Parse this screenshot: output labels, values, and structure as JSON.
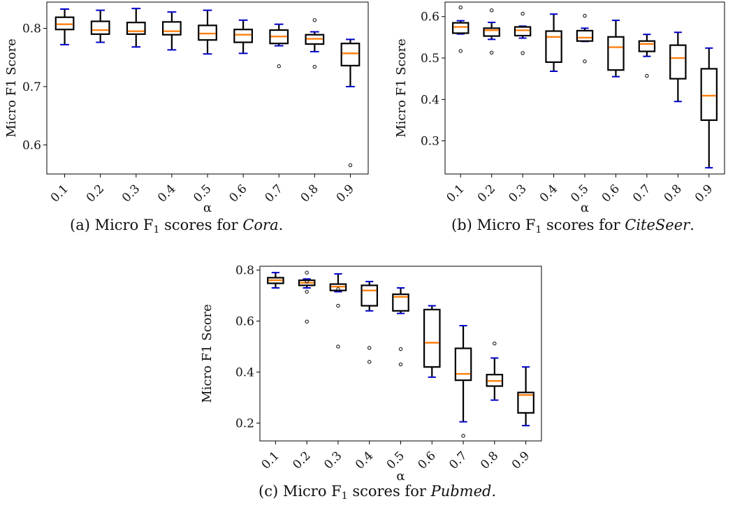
{
  "chart_data": [
    {
      "type": "boxplot",
      "ylabel": "Micro F1 Score",
      "xlabel": "α",
      "categories": [
        "0.1",
        "0.2",
        "0.3",
        "0.4",
        "0.5",
        "0.6",
        "0.7",
        "0.8",
        "0.9"
      ],
      "ylim": [
        0.55,
        0.845
      ],
      "yticks": [
        0.6,
        0.7,
        0.8
      ],
      "ytick_labels": [
        "0.6",
        "0.7",
        "0.8"
      ],
      "boxes": [
        {
          "whislo": 0.772,
          "q1": 0.798,
          "med": 0.807,
          "q3": 0.819,
          "whishi": 0.833,
          "fliers": []
        },
        {
          "whislo": 0.776,
          "q1": 0.79,
          "med": 0.797,
          "q3": 0.812,
          "whishi": 0.831,
          "fliers": []
        },
        {
          "whislo": 0.768,
          "q1": 0.79,
          "med": 0.795,
          "q3": 0.81,
          "whishi": 0.834,
          "fliers": []
        },
        {
          "whislo": 0.763,
          "q1": 0.789,
          "med": 0.795,
          "q3": 0.811,
          "whishi": 0.828,
          "fliers": []
        },
        {
          "whislo": 0.756,
          "q1": 0.78,
          "med": 0.791,
          "q3": 0.805,
          "whishi": 0.831,
          "fliers": []
        },
        {
          "whislo": 0.757,
          "q1": 0.776,
          "med": 0.789,
          "q3": 0.798,
          "whishi": 0.814,
          "fliers": []
        },
        {
          "whislo": 0.77,
          "q1": 0.774,
          "med": 0.786,
          "q3": 0.797,
          "whishi": 0.807,
          "fliers": [
            0.735
          ]
        },
        {
          "whislo": 0.76,
          "q1": 0.773,
          "med": 0.782,
          "q3": 0.789,
          "whishi": 0.794,
          "fliers": [
            0.814,
            0.734
          ]
        },
        {
          "whislo": 0.7,
          "q1": 0.736,
          "med": 0.757,
          "q3": 0.774,
          "whishi": 0.781,
          "fliers": [
            0.565
          ]
        }
      ]
    },
    {
      "type": "boxplot",
      "ylabel": "Micro F1 Score",
      "xlabel": "α",
      "categories": [
        "0.1",
        "0.2",
        "0.3",
        "0.4",
        "0.5",
        "0.6",
        "0.7",
        "0.8",
        "0.9"
      ],
      "ylim": [
        0.22,
        0.635
      ],
      "yticks": [
        0.3,
        0.4,
        0.5,
        0.6
      ],
      "ytick_labels": [
        "0.3",
        "0.4",
        "0.5",
        "0.6"
      ],
      "boxes": [
        {
          "whislo": 0.558,
          "q1": 0.56,
          "med": 0.575,
          "q3": 0.585,
          "whishi": 0.59,
          "fliers": [
            0.622,
            0.517
          ]
        },
        {
          "whislo": 0.545,
          "q1": 0.553,
          "med": 0.567,
          "q3": 0.572,
          "whishi": 0.586,
          "fliers": [
            0.615,
            0.513
          ]
        },
        {
          "whislo": 0.548,
          "q1": 0.554,
          "med": 0.567,
          "q3": 0.575,
          "whishi": 0.577,
          "fliers": [
            0.607,
            0.512
          ]
        },
        {
          "whislo": 0.468,
          "q1": 0.49,
          "med": 0.551,
          "q3": 0.565,
          "whishi": 0.606,
          "fliers": []
        },
        {
          "whislo": 0.54,
          "q1": 0.541,
          "med": 0.549,
          "q3": 0.566,
          "whishi": 0.572,
          "fliers": [
            0.602,
            0.492
          ]
        },
        {
          "whislo": 0.455,
          "q1": 0.471,
          "med": 0.526,
          "q3": 0.551,
          "whishi": 0.591,
          "fliers": []
        },
        {
          "whislo": 0.504,
          "q1": 0.516,
          "med": 0.534,
          "q3": 0.541,
          "whishi": 0.557,
          "fliers": [
            0.457
          ]
        },
        {
          "whislo": 0.395,
          "q1": 0.45,
          "med": 0.5,
          "q3": 0.531,
          "whishi": 0.562,
          "fliers": []
        },
        {
          "whislo": 0.235,
          "q1": 0.35,
          "med": 0.409,
          "q3": 0.474,
          "whishi": 0.524,
          "fliers": []
        }
      ]
    },
    {
      "type": "boxplot",
      "ylabel": "Micro F1 Score",
      "xlabel": "α",
      "categories": [
        "0.1",
        "0.2",
        "0.3",
        "0.4",
        "0.5",
        "0.6",
        "0.7",
        "0.8",
        "0.9"
      ],
      "ylim": [
        0.13,
        0.815
      ],
      "yticks": [
        0.2,
        0.4,
        0.6,
        0.8
      ],
      "ytick_labels": [
        "0.2",
        "0.4",
        "0.6",
        "0.8"
      ],
      "boxes": [
        {
          "whislo": 0.73,
          "q1": 0.748,
          "med": 0.76,
          "q3": 0.77,
          "whishi": 0.79,
          "fliers": []
        },
        {
          "whislo": 0.73,
          "q1": 0.74,
          "med": 0.75,
          "q3": 0.76,
          "whishi": 0.765,
          "fliers": [
            0.79,
            0.755,
            0.715,
            0.598
          ]
        },
        {
          "whislo": 0.715,
          "q1": 0.72,
          "med": 0.735,
          "q3": 0.745,
          "whishi": 0.785,
          "fliers": [
            0.725,
            0.66,
            0.5
          ]
        },
        {
          "whislo": 0.64,
          "q1": 0.66,
          "med": 0.72,
          "q3": 0.74,
          "whishi": 0.755,
          "fliers": [
            0.495,
            0.44
          ]
        },
        {
          "whislo": 0.63,
          "q1": 0.64,
          "med": 0.695,
          "q3": 0.705,
          "whishi": 0.73,
          "fliers": [
            0.49,
            0.43
          ]
        },
        {
          "whislo": 0.38,
          "q1": 0.42,
          "med": 0.515,
          "q3": 0.645,
          "whishi": 0.66,
          "fliers": []
        },
        {
          "whislo": 0.205,
          "q1": 0.368,
          "med": 0.393,
          "q3": 0.493,
          "whishi": 0.582,
          "fliers": [
            0.15
          ]
        },
        {
          "whislo": 0.29,
          "q1": 0.345,
          "med": 0.365,
          "q3": 0.39,
          "whishi": 0.455,
          "fliers": [
            0.512
          ]
        },
        {
          "whislo": 0.19,
          "q1": 0.24,
          "med": 0.31,
          "q3": 0.32,
          "whishi": 0.42,
          "fliers": []
        }
      ]
    }
  ],
  "captions": {
    "a": {
      "prefix": "(a) Micro F",
      "sub": "1",
      "mid": " scores for ",
      "dataset": "Cora",
      "suffix": "."
    },
    "b": {
      "prefix": "(b) Micro F",
      "sub": "1",
      "mid": " scores for ",
      "dataset": "CiteSeer",
      "suffix": "."
    },
    "c": {
      "prefix": "(c) Micro F",
      "sub": "1",
      "mid": " scores for ",
      "dataset": "Pubmed",
      "suffix": "."
    }
  },
  "colors": {
    "box": "#000000",
    "median": "#ff7f0e",
    "whisker_cap": "#0000cc",
    "flier": "#000000"
  }
}
